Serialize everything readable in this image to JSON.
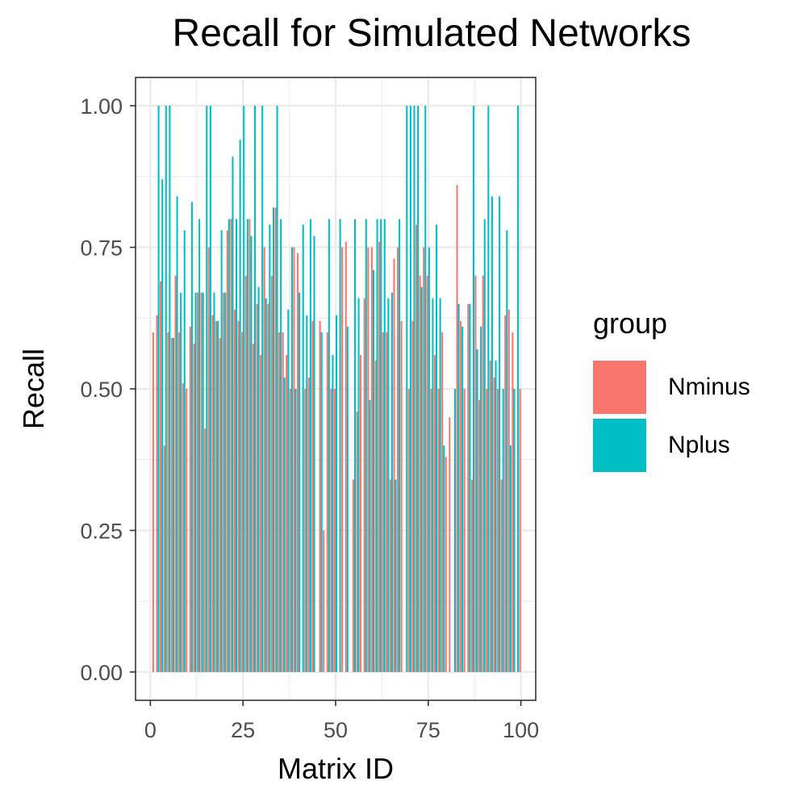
{
  "chart_data": {
    "type": "bar",
    "title": "Recall for Simulated Networks",
    "xlabel": "Matrix ID",
    "ylabel": "Recall",
    "xlim": [
      -4,
      104
    ],
    "ylim": [
      -0.05,
      1.05
    ],
    "xticks": [
      0,
      25,
      50,
      75,
      100
    ],
    "yticks": [
      0.0,
      0.25,
      0.5,
      0.75,
      1.0
    ],
    "xtick_labels": [
      "0",
      "25",
      "50",
      "75",
      "100"
    ],
    "ytick_labels": [
      "0.00",
      "0.25",
      "0.50",
      "0.75",
      "1.00"
    ],
    "grid": true,
    "legend": {
      "title": "group",
      "position": "right"
    },
    "x": [
      1,
      2,
      3,
      4,
      5,
      6,
      7,
      8,
      9,
      10,
      11,
      12,
      13,
      14,
      15,
      16,
      17,
      18,
      19,
      20,
      21,
      22,
      23,
      24,
      25,
      26,
      27,
      28,
      29,
      30,
      31,
      32,
      33,
      34,
      35,
      36,
      37,
      38,
      39,
      40,
      41,
      42,
      43,
      44,
      45,
      46,
      47,
      48,
      49,
      50,
      51,
      52,
      53,
      54,
      55,
      56,
      57,
      58,
      59,
      60,
      61,
      62,
      63,
      64,
      65,
      66,
      67,
      68,
      69,
      70,
      71,
      72,
      73,
      74,
      75,
      76,
      77,
      78,
      79,
      80,
      81,
      82,
      83,
      84,
      85,
      86,
      87,
      88,
      89,
      90,
      91,
      92,
      93,
      94,
      95,
      96,
      97,
      98,
      99,
      100
    ],
    "series": [
      {
        "name": "Nminus",
        "color": "#F8766D",
        "values": [
          0.6,
          0.63,
          0.69,
          0.4,
          0.6,
          0.59,
          0.7,
          0.6,
          0.51,
          0.5,
          0.61,
          0.58,
          0.67,
          0.67,
          0.43,
          0.75,
          0.63,
          0.62,
          0.59,
          0.67,
          0.78,
          0.8,
          0.64,
          0.62,
          0.6,
          0.7,
          0.8,
          0.58,
          0.65,
          0.56,
          0.75,
          0.65,
          0.7,
          0.82,
          0.6,
          0.6,
          0.56,
          0.5,
          0.75,
          0.74,
          0.0,
          0.5,
          0.52,
          0.62,
          0.0,
          0.62,
          0.25,
          0.6,
          0.5,
          0.5,
          0.0,
          0.75,
          0.76,
          0.0,
          0.34,
          0.46,
          0.56,
          0.66,
          0.75,
          0.75,
          0.55,
          0.76,
          0.6,
          0.6,
          0.34,
          0.73,
          0.75,
          0.62,
          0.0,
          0.5,
          0.62,
          0.79,
          0.7,
          0.75,
          0.7,
          0.5,
          0.56,
          0.5,
          0.6,
          0.38,
          0.45,
          0.0,
          0.86,
          0.62,
          0.5,
          0.65,
          0.34,
          0.7,
          0.48,
          0.7,
          0.5,
          0.55,
          0.52,
          0.5,
          0.34,
          0.63,
          0.64,
          0.6,
          0.0,
          0.5
        ]
      },
      {
        "name": "Nplus",
        "color": "#00BFC4",
        "values": [
          0.0,
          1.0,
          0.87,
          1.0,
          1.0,
          0.59,
          0.84,
          0.67,
          0.78,
          0.0,
          0.83,
          0.67,
          0.8,
          0.67,
          1.0,
          1.0,
          0.67,
          0.62,
          0.78,
          0.67,
          0.8,
          0.91,
          0.8,
          0.94,
          1.0,
          0.8,
          0.77,
          1.0,
          0.68,
          1.0,
          0.66,
          0.79,
          0.82,
          1.0,
          0.8,
          0.52,
          0.64,
          0.75,
          0.5,
          0.67,
          0.79,
          0.63,
          0.8,
          0.77,
          0.0,
          0.6,
          0.0,
          0.8,
          0.56,
          0.63,
          0.8,
          0.0,
          0.61,
          0.0,
          0.8,
          0.66,
          0.0,
          0.8,
          0.48,
          0.71,
          0.8,
          0.8,
          0.8,
          0.66,
          0.67,
          0.34,
          0.8,
          0.0,
          1.0,
          1.0,
          1.0,
          1.0,
          0.68,
          1.0,
          0.75,
          0.66,
          0.79,
          0.66,
          0.4,
          0.0,
          0.0,
          0.5,
          0.65,
          0.61,
          0.0,
          0.65,
          1.0,
          0.57,
          0.61,
          0.8,
          1.0,
          0.84,
          0.55,
          0.84,
          0.5,
          0.78,
          0.4,
          0.5,
          1.0,
          0.0
        ]
      }
    ]
  }
}
